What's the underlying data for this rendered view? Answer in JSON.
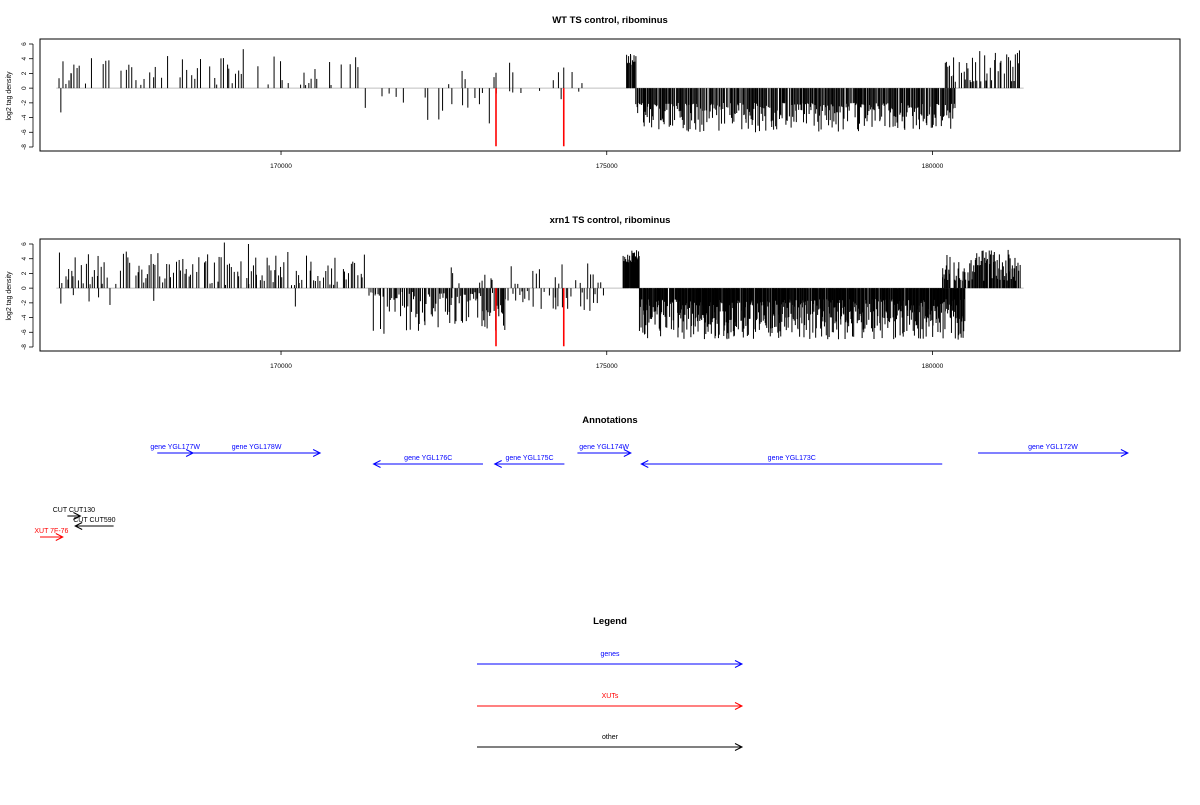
{
  "chart_data": [
    {
      "type": "bar",
      "title": "WT TS control, ribominus",
      "ylabel": "log2 tag density",
      "xlabel": "",
      "xlim": [
        166300,
        183800
      ],
      "ylim": [
        -8,
        6
      ],
      "xticks": [
        170000,
        175000,
        180000
      ],
      "yticks": [
        6,
        4,
        2,
        0,
        -2,
        -4,
        -6,
        -8
      ],
      "tick_labels_x": [
        "170000",
        "175000",
        "180000"
      ],
      "tick_labels_y": [
        "6",
        "4",
        "2",
        "0",
        "-2",
        "-4",
        "-6",
        "-8"
      ],
      "baseline_x_range": [
        166550,
        181400
      ],
      "segments": [
        {
          "range": [
            166600,
            171300
          ],
          "sign": 1,
          "step": 45,
          "min": 0.4,
          "max": 4.5,
          "density": 0.55,
          "seed": 11
        },
        {
          "range": [
            171300,
            173300
          ],
          "sign": -1,
          "step": 60,
          "min": 0.6,
          "max": 5.2,
          "density": 0.45,
          "seed": 23
        },
        {
          "range": [
            172600,
            174900
          ],
          "sign": 1,
          "step": 80,
          "min": 0.5,
          "max": 3.5,
          "density": 0.25,
          "seed": 31
        },
        {
          "range": [
            173500,
            174600
          ],
          "sign": -1,
          "step": 90,
          "min": 0.3,
          "max": 2.0,
          "density": 0.3,
          "seed": 37
        },
        {
          "range": [
            175300,
            175450
          ],
          "sign": 1,
          "step": 12,
          "min": 3.0,
          "max": 4.8,
          "density": 0.95,
          "seed": 41
        },
        {
          "range": [
            175450,
            180350
          ],
          "sign": -1,
          "step": 14,
          "min": 2.0,
          "max": 6.0,
          "density": 0.92,
          "seed": 53
        },
        {
          "range": [
            180200,
            181350
          ],
          "sign": 1,
          "step": 22,
          "min": 0.8,
          "max": 5.2,
          "density": 0.85,
          "seed": 67
        }
      ],
      "singles": [
        {
          "x": 166620,
          "y": -3.3
        },
        {
          "x": 166780,
          "y": 2.0
        },
        {
          "x": 166820,
          "y": 3.2
        },
        {
          "x": 169420,
          "y": 5.3
        },
        {
          "x": 173300,
          "y": 2.1
        },
        {
          "x": 174300,
          "y": -1.5
        },
        {
          "x": 174340,
          "y": 2.8
        }
      ],
      "highlights": [
        {
          "x": 173300,
          "y": -7.9,
          "color": "#ff0000"
        },
        {
          "x": 174340,
          "y": -7.9,
          "color": "#ff0000"
        }
      ],
      "bar_color": "#000000",
      "baseline_color": "#bfbfbf",
      "grid": false
    },
    {
      "type": "bar",
      "title": "xrn1 TS control, ribominus",
      "ylabel": "log2 tag density",
      "xlabel": "",
      "xlim": [
        166300,
        183800
      ],
      "ylim": [
        -8,
        6
      ],
      "xticks": [
        170000,
        175000,
        180000
      ],
      "yticks": [
        6,
        4,
        2,
        0,
        -2,
        -4,
        -6,
        -8
      ],
      "tick_labels_x": [
        "170000",
        "175000",
        "180000"
      ],
      "tick_labels_y": [
        "6",
        "4",
        "2",
        "0",
        "-2",
        "-4",
        "-6",
        "-8"
      ],
      "baseline_x_range": [
        166550,
        181400
      ],
      "segments": [
        {
          "range": [
            166600,
            171300
          ],
          "sign": 1,
          "step": 30,
          "min": 0.4,
          "max": 5.0,
          "density": 0.75,
          "seed": 101
        },
        {
          "range": [
            166800,
            168200
          ],
          "sign": -1,
          "step": 120,
          "min": 0.5,
          "max": 2.5,
          "density": 0.35,
          "seed": 103
        },
        {
          "range": [
            171350,
            173450
          ],
          "sign": -1,
          "step": 18,
          "min": 0.5,
          "max": 5.8,
          "density": 0.85,
          "seed": 113
        },
        {
          "range": [
            172600,
            175000
          ],
          "sign": 1,
          "step": 55,
          "min": 0.5,
          "max": 3.8,
          "density": 0.4,
          "seed": 127
        },
        {
          "range": [
            173450,
            175000
          ],
          "sign": -1,
          "step": 30,
          "min": 0.4,
          "max": 3.2,
          "density": 0.6,
          "seed": 131
        },
        {
          "range": [
            175250,
            175500
          ],
          "sign": 1,
          "step": 8,
          "min": 3.5,
          "max": 5.2,
          "density": 0.95,
          "seed": 137
        },
        {
          "range": [
            175500,
            180500
          ],
          "sign": -1,
          "step": 9,
          "min": 1.5,
          "max": 7.0,
          "density": 0.95,
          "seed": 149
        },
        {
          "range": [
            180150,
            181350
          ],
          "sign": 1,
          "step": 12,
          "min": 1.0,
          "max": 5.2,
          "density": 0.9,
          "seed": 151
        }
      ],
      "singles": [
        {
          "x": 166620,
          "y": -2.1
        },
        {
          "x": 169130,
          "y": 6.2
        },
        {
          "x": 169500,
          "y": 6.0
        },
        {
          "x": 170220,
          "y": -2.5
        },
        {
          "x": 171580,
          "y": -6.2
        },
        {
          "x": 180450,
          "y": -4.1
        }
      ],
      "highlights": [
        {
          "x": 173300,
          "y": -7.9,
          "color": "#ff0000"
        },
        {
          "x": 174340,
          "y": -7.9,
          "color": "#ff0000"
        }
      ],
      "bar_color": "#000000",
      "baseline_color": "#bfbfbf",
      "grid": false
    }
  ],
  "annotations": {
    "title": "Annotations",
    "xlim": [
      166300,
      183800
    ],
    "tracks": [
      {
        "label": "gene YGL177W",
        "color": "#0000ff",
        "start": 168100,
        "end": 168650,
        "strand": "+",
        "row": 0
      },
      {
        "label": "gene YGL178W",
        "color": "#0000ff",
        "start": 168650,
        "end": 170600,
        "strand": "+",
        "row": 0
      },
      {
        "label": "gene YGL174W",
        "color": "#0000ff",
        "start": 174550,
        "end": 175370,
        "strand": "+",
        "row": 0
      },
      {
        "label": "gene YGL172W",
        "color": "#0000ff",
        "start": 180700,
        "end": 183000,
        "strand": "+",
        "row": 0
      },
      {
        "label": "gene YGL176C",
        "color": "#0000ff",
        "start": 171420,
        "end": 173100,
        "strand": "-",
        "row": 1
      },
      {
        "label": "gene YGL175C",
        "color": "#0000ff",
        "start": 173280,
        "end": 174350,
        "strand": "-",
        "row": 1
      },
      {
        "label": "gene YGL173C",
        "color": "#0000ff",
        "start": 175530,
        "end": 180150,
        "strand": "-",
        "row": 1
      },
      {
        "label": "CUT CUT130",
        "color": "#000000",
        "start": 166720,
        "end": 166920,
        "strand": "+",
        "row": 2
      },
      {
        "label": "CUT CUT590",
        "color": "#000000",
        "start": 166840,
        "end": 167430,
        "strand": "-",
        "row": 3
      },
      {
        "label": "XUT 7F-76",
        "color": "#ff0000",
        "start": 166300,
        "end": 166650,
        "strand": "+",
        "row": 4
      }
    ]
  },
  "legend": {
    "title": "Legend",
    "items": [
      {
        "label": "genes",
        "color": "#0000ff"
      },
      {
        "label": "XUTs",
        "color": "#ff0000"
      },
      {
        "label": "other",
        "color": "#000000"
      }
    ]
  }
}
